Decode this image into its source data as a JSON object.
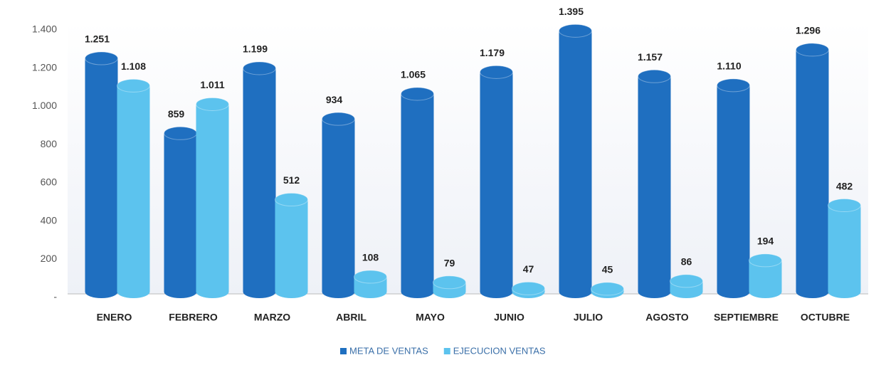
{
  "chart_data": {
    "type": "bar",
    "categories": [
      "ENERO",
      "FEBRERO",
      "MARZO",
      "ABRIL",
      "MAYO",
      "JUNIO",
      "JULIO",
      "AGOSTO",
      "SEPTIEMBRE",
      "OCTUBRE"
    ],
    "series": [
      {
        "name": "META DE VENTAS",
        "color": "#1f6fc0",
        "values": [
          1251,
          859,
          1199,
          934,
          1065,
          1179,
          1395,
          1157,
          1110,
          1296
        ],
        "value_labels": [
          "1.251",
          "859",
          "1.199",
          "934",
          "1.065",
          "1.179",
          "1.395",
          "1.157",
          "1.110",
          "1.296"
        ]
      },
      {
        "name": "EJECUCION VENTAS",
        "color": "#5cc3ee",
        "values": [
          1108,
          1011,
          512,
          108,
          79,
          47,
          45,
          86,
          194,
          482
        ],
        "value_labels": [
          "1.108",
          "1.011",
          "512",
          "108",
          "79",
          "47",
          "45",
          "86",
          "194",
          "482"
        ]
      }
    ],
    "ylim": [
      0,
      1400
    ],
    "yticks": [
      {
        "value": 0,
        "label": "-"
      },
      200,
      400,
      600,
      800,
      {
        "value": 1000,
        "label": "1.000"
      },
      {
        "value": 1200,
        "label": "1.200"
      },
      {
        "value": 1400,
        "label": "1.400"
      }
    ],
    "legend": "bottom"
  }
}
